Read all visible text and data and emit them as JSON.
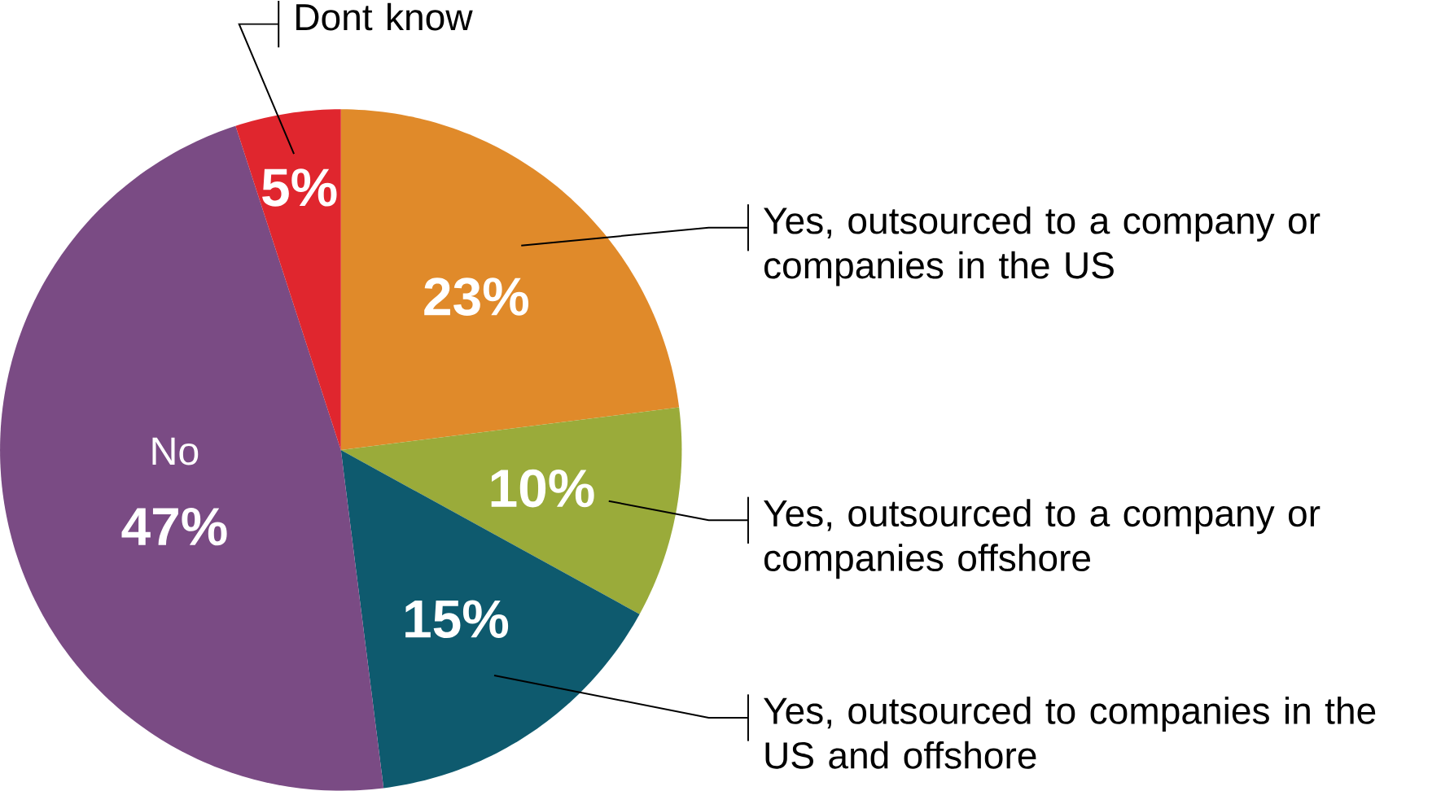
{
  "chart_data": {
    "type": "pie",
    "categories": [
      "Yes, outsourced to a company or companies in the US",
      "Yes, outsourced to a company or companies offshore",
      "Yes, outsourced to companies in the US and offshore",
      "No",
      "Dont know"
    ],
    "values": [
      23,
      10,
      15,
      47,
      5
    ],
    "colors": [
      "#e08a2a",
      "#9aab3a",
      "#0e5a6e",
      "#7a4b84",
      "#e0262e"
    ],
    "value_labels": [
      "23%",
      "10%",
      "15%",
      "47%",
      "5%"
    ]
  }
}
